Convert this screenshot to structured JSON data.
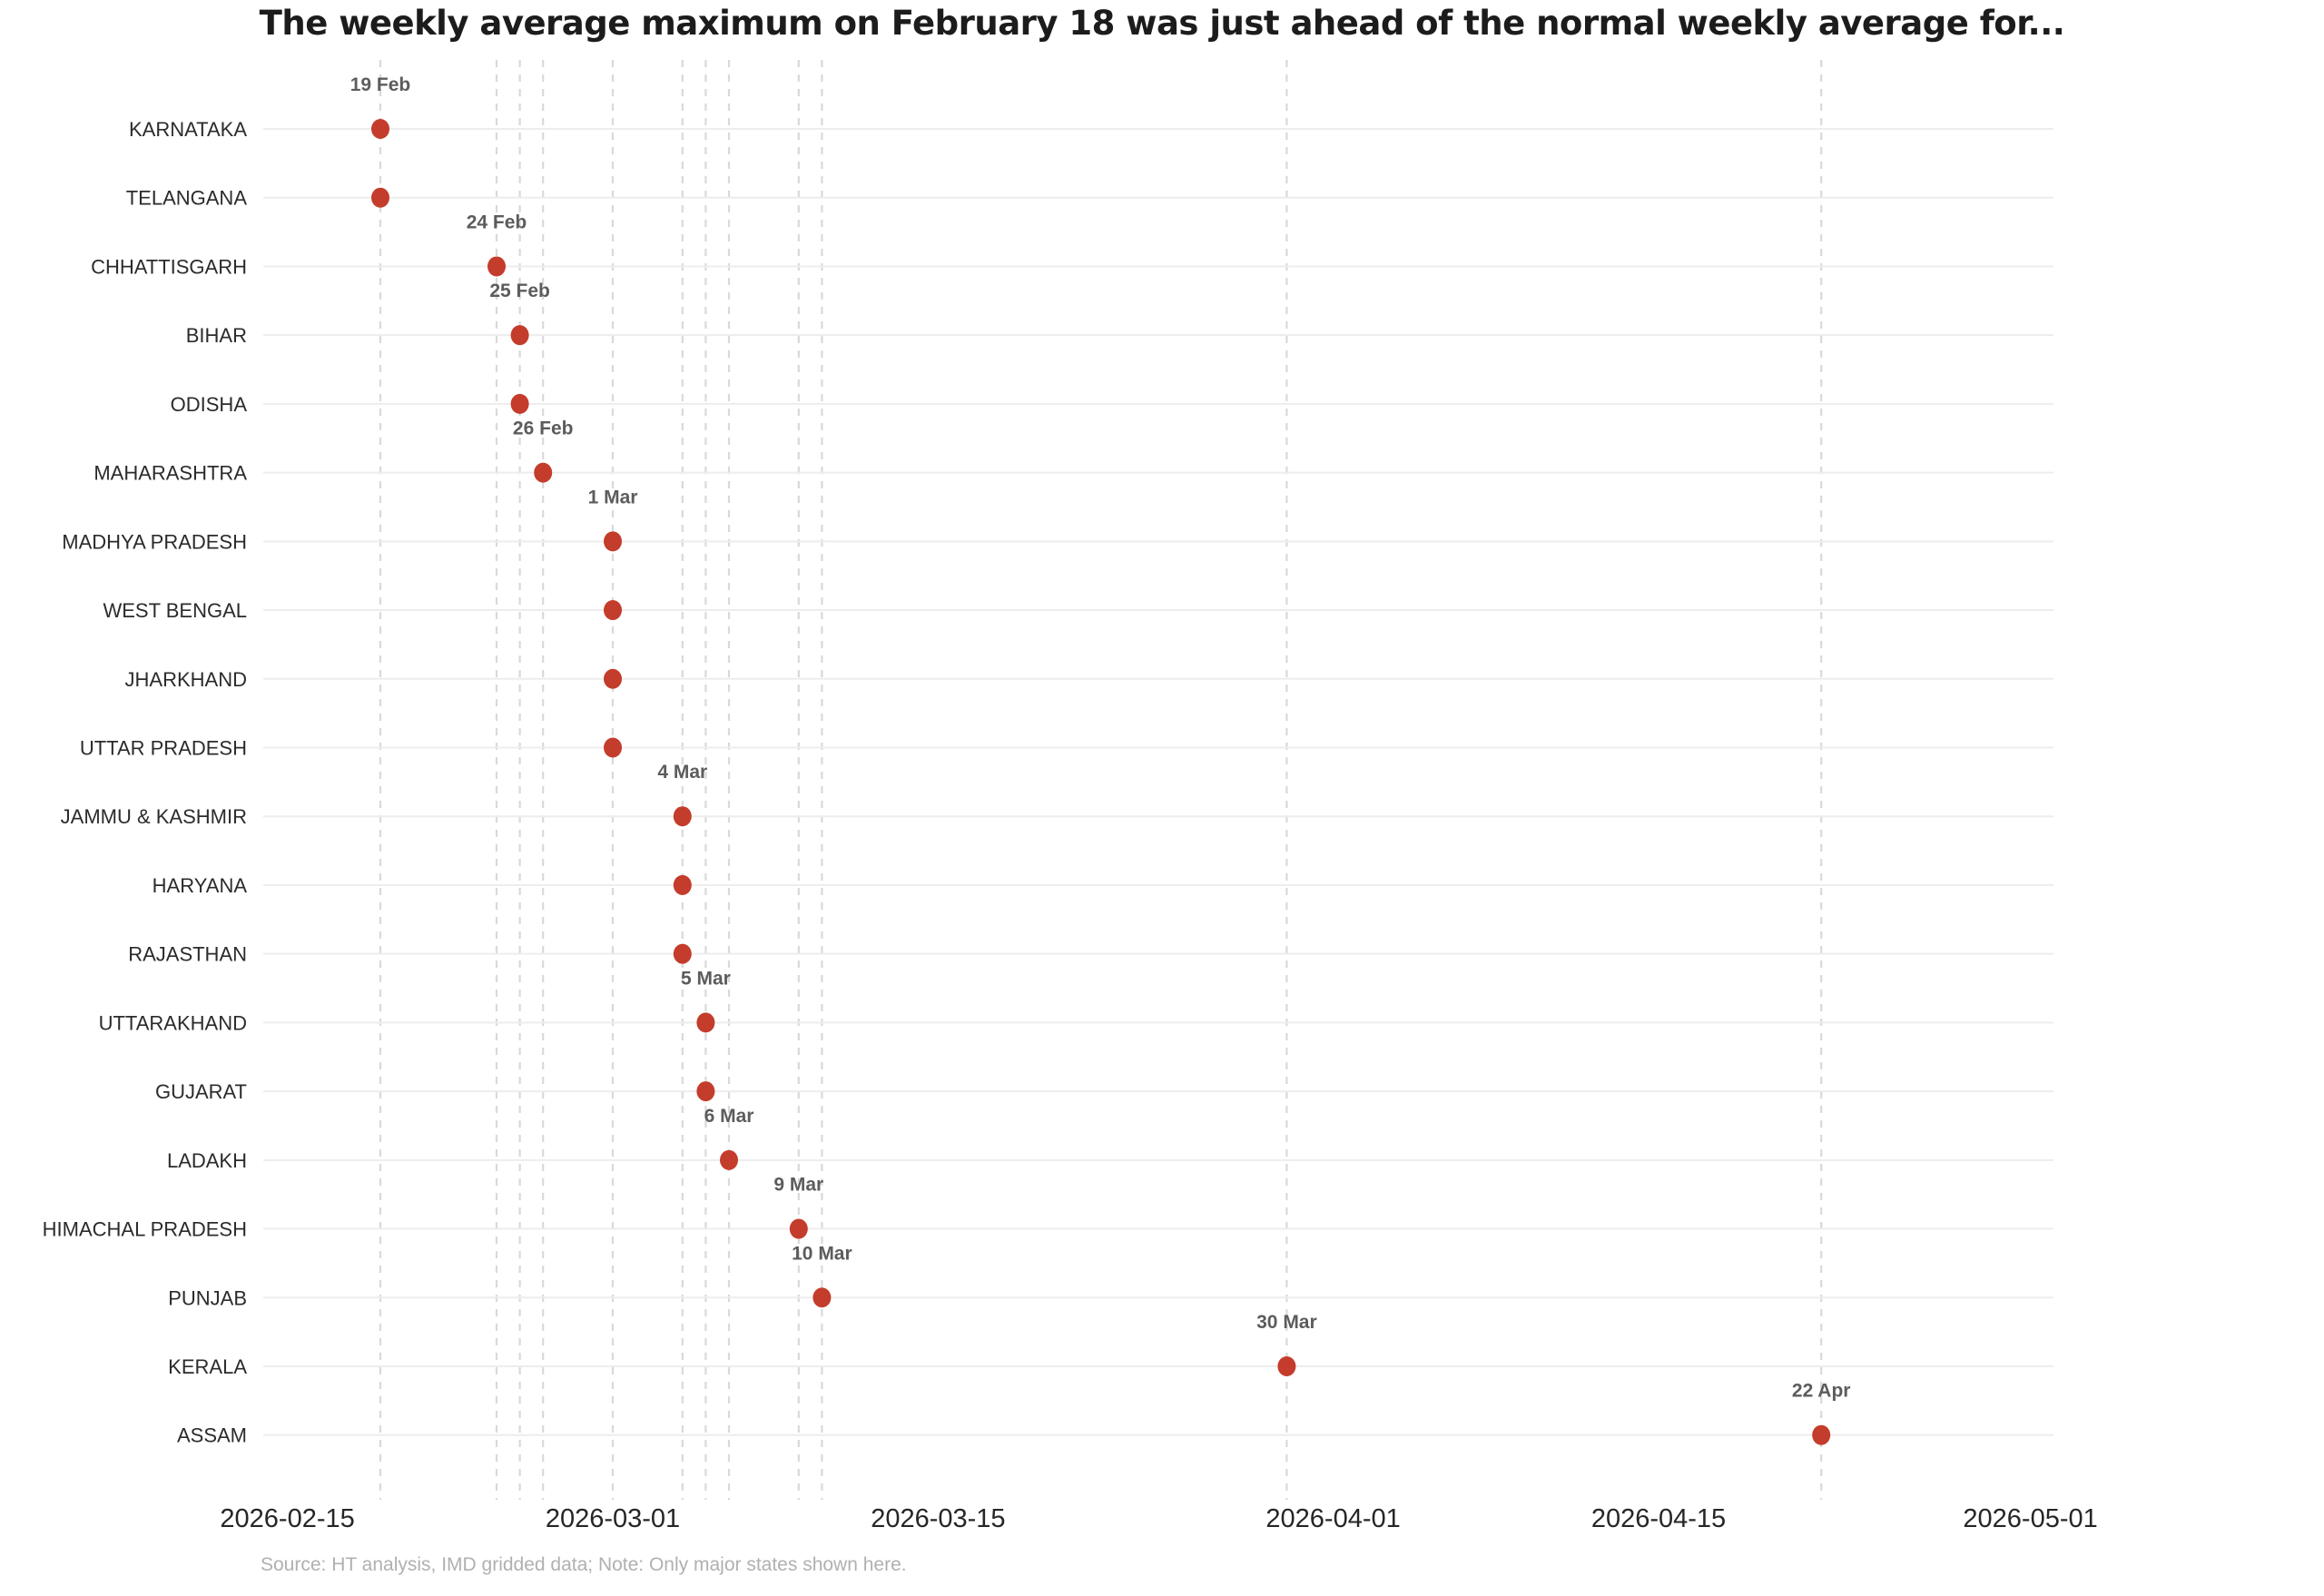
{
  "title": "The weekly average maximum on February 18 was just ahead of the normal weekly average for...",
  "source_note": "Source: HT analysis, IMD gridded data; Note: Only major states shown here.",
  "chart_data": {
    "type": "scatter",
    "subtype": "horizontal-dot-plot-timeline",
    "title": "The weekly average maximum on February 18 was just ahead of the normal weekly average for...",
    "xlabel": "",
    "ylabel": "",
    "x_axis": {
      "tick_labels": [
        "2026-02-15",
        "2026-03-01",
        "2026-03-15",
        "2026-04-01",
        "2026-04-15",
        "2026-05-01"
      ],
      "scale": "time",
      "grid_vertical": "dashed line at every unique data date",
      "grid_horizontal": "solid light line per state row"
    },
    "categories": [
      "KARNATAKA",
      "TELANGANA",
      "CHHATTISGARH",
      "BIHAR",
      "ODISHA",
      "MAHARASHTRA",
      "MADHYA PRADESH",
      "WEST BENGAL",
      "JHARKHAND",
      "UTTAR PRADESH",
      "JAMMU & KASHMIR",
      "HARYANA",
      "RAJASTHAN",
      "UTTARAKHAND",
      "GUJARAT",
      "LADAKH",
      "HIMACHAL PRADESH",
      "PUNJAB",
      "KERALA",
      "ASSAM"
    ],
    "points": [
      {
        "state": "KARNATAKA",
        "date": "2026-02-19",
        "annotation": "19 Feb"
      },
      {
        "state": "TELANGANA",
        "date": "2026-02-19",
        "annotation": ""
      },
      {
        "state": "CHHATTISGARH",
        "date": "2026-02-24",
        "annotation": "24 Feb"
      },
      {
        "state": "BIHAR",
        "date": "2026-02-25",
        "annotation": "25 Feb"
      },
      {
        "state": "ODISHA",
        "date": "2026-02-25",
        "annotation": ""
      },
      {
        "state": "MAHARASHTRA",
        "date": "2026-02-26",
        "annotation": "26 Feb"
      },
      {
        "state": "MADHYA PRADESH",
        "date": "2026-03-01",
        "annotation": "1 Mar"
      },
      {
        "state": "WEST BENGAL",
        "date": "2026-03-01",
        "annotation": ""
      },
      {
        "state": "JHARKHAND",
        "date": "2026-03-01",
        "annotation": ""
      },
      {
        "state": "UTTAR PRADESH",
        "date": "2026-03-01",
        "annotation": ""
      },
      {
        "state": "JAMMU & KASHMIR",
        "date": "2026-03-04",
        "annotation": "4 Mar"
      },
      {
        "state": "HARYANA",
        "date": "2026-03-04",
        "annotation": ""
      },
      {
        "state": "RAJASTHAN",
        "date": "2026-03-04",
        "annotation": ""
      },
      {
        "state": "UTTARAKHAND",
        "date": "2026-03-05",
        "annotation": "5 Mar"
      },
      {
        "state": "GUJARAT",
        "date": "2026-03-05",
        "annotation": ""
      },
      {
        "state": "LADAKH",
        "date": "2026-03-06",
        "annotation": "6 Mar"
      },
      {
        "state": "HIMACHAL PRADESH",
        "date": "2026-03-09",
        "annotation": "9 Mar"
      },
      {
        "state": "PUNJAB",
        "date": "2026-03-10",
        "annotation": "10 Mar"
      },
      {
        "state": "KERALA",
        "date": "2026-03-30",
        "annotation": "30 Mar"
      },
      {
        "state": "ASSAM",
        "date": "2026-04-22",
        "annotation": "22 Apr"
      }
    ],
    "colors": {
      "dot": "#c43c2b",
      "annotation_text": "#5c5c5c",
      "state_label": "#2b2b2b",
      "tick_label": "#262626",
      "grid_horizontal": "#ededed",
      "grid_vertical_dashed": "#d9d9d9",
      "title": "#1c1c1c",
      "source": "#b0b0b0",
      "background": "#ffffff"
    },
    "legend": "none"
  }
}
